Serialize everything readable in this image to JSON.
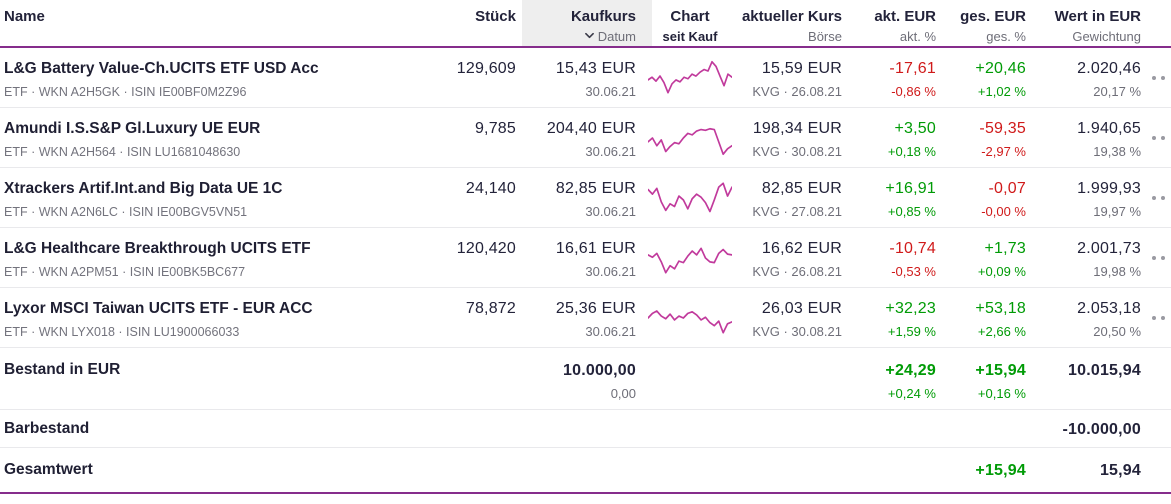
{
  "colors": {
    "accent_purple": "#862d8c",
    "spark_magenta": "#c13a9c",
    "positive_green": "#009b06",
    "negative_red": "#d01a1a",
    "header_highlight_bg": "#eeeeee"
  },
  "header": {
    "columns": [
      {
        "label": "Name",
        "sub": ""
      },
      {
        "label": "Stück",
        "sub": ""
      },
      {
        "label": "Kaufkurs",
        "sub": "Datum",
        "sort_icon": "chevron-down-icon"
      },
      {
        "label": "Chart",
        "sub": "seit Kauf"
      },
      {
        "label": "aktueller Kurs",
        "sub": "Börse"
      },
      {
        "label": "akt. EUR",
        "sub": "akt. %"
      },
      {
        "label": "ges. EUR",
        "sub": "ges. %"
      },
      {
        "label": "Wert in EUR",
        "sub": "Gewichtung"
      }
    ]
  },
  "positions": [
    {
      "name": "L&G Battery Value-Ch.UCITS ETF USD Acc",
      "meta": "ETF · WKN A2H5GK · ISIN IE00BF0M2Z96",
      "stueck": "129,609",
      "kaufkurs": "15,43 EUR",
      "kauf_datum": "30.06.21",
      "kurs": "15,59 EUR",
      "kurs_sub": "KVG · 26.08.21",
      "akt_eur": "-17,61",
      "akt_pct": "-0,86 %",
      "akt_dir": "neg",
      "ges_eur": "+20,46",
      "ges_pct": "+1,02 %",
      "ges_dir": "pos",
      "wert": "2.020,46",
      "gewichtung": "20,17 %",
      "spark": [
        45,
        52,
        42,
        55,
        38,
        12,
        35,
        45,
        40,
        52,
        48,
        60,
        55,
        65,
        72,
        68,
        92,
        80,
        55,
        30,
        60,
        52
      ]
    },
    {
      "name": "Amundi I.S.S&P Gl.Luxury UE EUR",
      "meta": "ETF · WKN A2H564 · ISIN LU1681048630",
      "stueck": "9,785",
      "kaufkurs": "204,40 EUR",
      "kauf_datum": "30.06.21",
      "kurs": "198,34 EUR",
      "kurs_sub": "KVG · 30.08.21",
      "akt_eur": "+3,50",
      "akt_pct": "+0,18 %",
      "akt_dir": "pos",
      "ges_eur": "-59,35",
      "ges_pct": "-2,97 %",
      "ges_dir": "neg",
      "wert": "1.940,65",
      "gewichtung": "19,38 %",
      "spark": [
        40,
        50,
        30,
        45,
        15,
        28,
        38,
        35,
        50,
        62,
        58,
        68,
        72,
        70,
        74,
        72,
        40,
        8,
        22,
        30
      ]
    },
    {
      "name": "Xtrackers Artif.Int.and Big Data UE 1C",
      "meta": "ETF · WKN A2N6LC · ISIN IE00BGV5VN51",
      "stueck": "24,140",
      "kaufkurs": "82,85 EUR",
      "kauf_datum": "30.06.21",
      "kurs": "82,85 EUR",
      "kurs_sub": "KVG · 27.08.21",
      "akt_eur": "+16,91",
      "akt_pct": "+0,85 %",
      "akt_dir": "pos",
      "ges_eur": "-0,07",
      "ges_pct": "-0,00 %",
      "ges_dir": "neg",
      "wert": "1.999,93",
      "gewichtung": "19,97 %",
      "spark": [
        72,
        60,
        75,
        40,
        18,
        35,
        28,
        55,
        45,
        22,
        48,
        60,
        52,
        38,
        15,
        45,
        78,
        88,
        55,
        78
      ]
    },
    {
      "name": "L&G Healthcare Breakthrough UCITS ETF",
      "meta": "ETF · WKN A2PM51 · ISIN IE00BK5BC677",
      "stueck": "120,420",
      "kaufkurs": "16,61 EUR",
      "kauf_datum": "30.06.21",
      "kurs": "16,62 EUR",
      "kurs_sub": "KVG · 26.08.21",
      "akt_eur": "-10,74",
      "akt_pct": "-0,53 %",
      "akt_dir": "neg",
      "ges_eur": "+1,73",
      "ges_pct": "+0,09 %",
      "ges_dir": "pos",
      "wert": "2.001,73",
      "gewichtung": "19,98 %",
      "spark": [
        58,
        52,
        62,
        40,
        12,
        30,
        22,
        42,
        38,
        55,
        68,
        58,
        75,
        50,
        40,
        38,
        62,
        72,
        60,
        58
      ]
    },
    {
      "name": "Lyxor MSCI Taiwan UCITS ETF - EUR ACC",
      "meta": "ETF · WKN LYX018 · ISIN LU1900066033",
      "stueck": "78,872",
      "kaufkurs": "25,36 EUR",
      "kauf_datum": "30.06.21",
      "kurs": "26,03 EUR",
      "kurs_sub": "KVG · 30.08.21",
      "akt_eur": "+32,23",
      "akt_pct": "+1,59 %",
      "akt_dir": "pos",
      "ges_eur": "+53,18",
      "ges_pct": "+2,66 %",
      "ges_dir": "pos",
      "wert": "2.053,18",
      "gewichtung": "20,50 %",
      "spark": [
        50,
        62,
        68,
        55,
        48,
        60,
        45,
        55,
        50,
        62,
        66,
        58,
        45,
        52,
        38,
        30,
        42,
        12,
        35,
        40
      ]
    }
  ],
  "summary": {
    "bestand": {
      "label": "Bestand in EUR",
      "kaufwert": "10.000,00",
      "kaufwert_sub": "0,00",
      "akt_eur": "+24,29",
      "akt_pct": "+0,24 %",
      "ges_eur": "+15,94",
      "ges_pct": "+0,16 %",
      "wert": "10.015,94"
    },
    "barbestand": {
      "label": "Barbestand",
      "wert": "-10.000,00"
    },
    "gesamtwert": {
      "label": "Gesamtwert",
      "ges_eur": "+15,94",
      "wert": "15,94"
    }
  }
}
